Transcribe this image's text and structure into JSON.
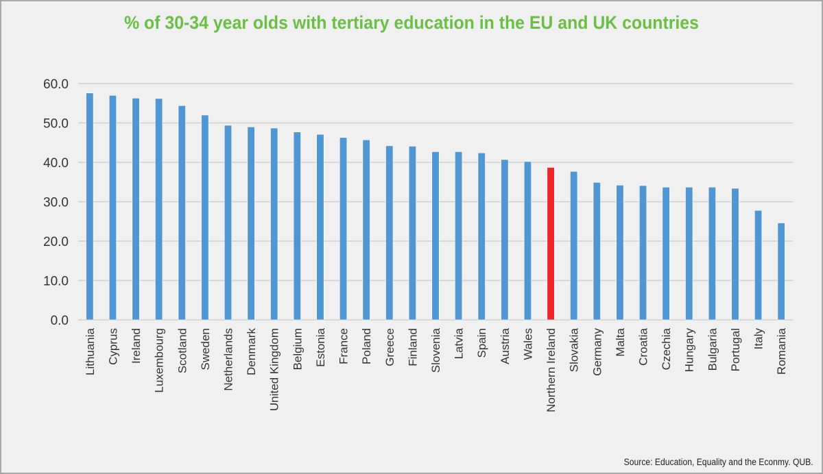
{
  "chart_data": {
    "type": "bar",
    "title": "% of 30-34 year olds with tertiary education in the EU and UK countries",
    "xlabel": "",
    "ylabel": "",
    "ylim": [
      0,
      60
    ],
    "yticks": [
      "0.0",
      "10.0",
      "20.0",
      "30.0",
      "40.0",
      "50.0",
      "60.0"
    ],
    "grid": true,
    "categories": [
      "Lithuania",
      "Cyprus",
      "Ireland",
      "Luxembourg",
      "Scotland",
      "Sweden",
      "Netherlands",
      "Denmark",
      "United Kingdom",
      "Belgium",
      "Estonia",
      "France",
      "Poland",
      "Greece",
      "Finland",
      "Slovenia",
      "Latvia",
      "Spain",
      "Austria",
      "Wales",
      "Northern Ireland",
      "Slovakia",
      "Germany",
      "Malta",
      "Croatia",
      "Czechia",
      "Hungary",
      "Bulgaria",
      "Portugal",
      "Italy",
      "Romania"
    ],
    "values": [
      57.6,
      57.0,
      56.3,
      56.2,
      54.4,
      52.0,
      49.4,
      49.0,
      48.7,
      47.7,
      47.1,
      46.3,
      45.7,
      44.2,
      44.1,
      42.7,
      42.7,
      42.4,
      40.7,
      40.2,
      38.7,
      37.7,
      34.9,
      34.2,
      34.1,
      33.7,
      33.7,
      33.7,
      33.4,
      27.8,
      24.6
    ],
    "highlight": "Northern Ireland",
    "colors": {
      "bar": "#4f96d3",
      "highlight": "#ee2629",
      "title": "#6abf44",
      "grid": "#d0d0d0"
    },
    "source": "Source: Education, Equality and the Econmy. QUB."
  }
}
